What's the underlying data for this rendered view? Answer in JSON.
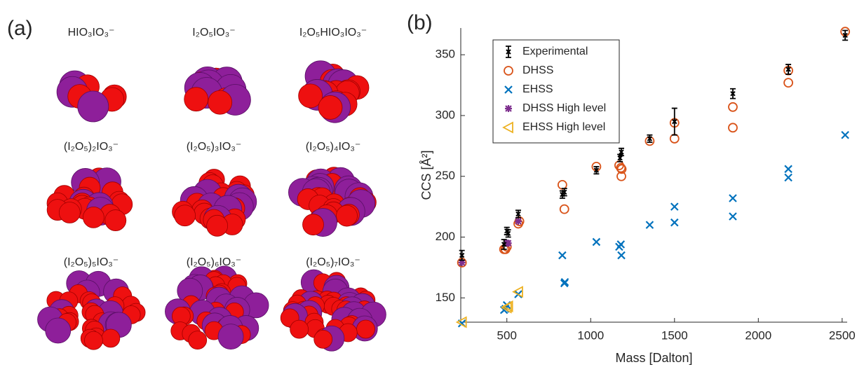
{
  "panel_a": {
    "label": "(a)",
    "molecules": [
      "HIO₃IO₃⁻",
      "I₂O₅IO₃⁻",
      "I₂O₅HIO₃IO₃⁻",
      "(I₂O₅)₂IO₃⁻",
      "(I₂O₅)₃IO₃⁻",
      "(I₂O₅)₄IO₃⁻",
      "(I₂O₅)₅IO₃⁻",
      "(I₂O₅)₆IO₃⁻",
      "(I₂O₅)₇IO₃⁻"
    ]
  },
  "chart_data": {
    "type": "scatter",
    "panel_label": "(b)",
    "x_label": "Mass [Dalton]",
    "y_label": "CCS [Å²]",
    "xlim": [
      225,
      2530
    ],
    "ylim": [
      130,
      372
    ],
    "xticks": [
      500,
      1000,
      1500,
      2000,
      2500
    ],
    "yticks": [
      150,
      200,
      250,
      300,
      350
    ],
    "legend": "upper left",
    "series": [
      {
        "name": "Experimental",
        "color": "#000000",
        "marker": "errorbar",
        "x": [
          232,
          483,
          500,
          508,
          568,
          831,
          843,
          1034,
          1175,
          1183,
          1352,
          1500,
          1848,
          2179,
          2518
        ],
        "values": [
          185,
          194,
          205,
          203,
          219,
          235,
          237,
          255,
          265,
          270,
          281,
          295,
          318,
          338,
          366
        ],
        "errors": [
          4,
          4,
          3,
          3,
          3,
          3,
          3,
          3,
          3,
          3,
          3,
          11,
          4,
          4,
          4
        ]
      },
      {
        "name": "DHSS",
        "color": "#d95319",
        "marker": "circle",
        "x": [
          232,
          483,
          492,
          500,
          568,
          575,
          831,
          843,
          1034,
          1170,
          1180,
          1183,
          1185,
          1352,
          1500,
          1500,
          1848,
          1848,
          2179,
          2179,
          2518
        ],
        "values": [
          179,
          190,
          190,
          192,
          211,
          213,
          243,
          223,
          258,
          259,
          257,
          250,
          256,
          279,
          294,
          281,
          307,
          290,
          337,
          327,
          369
        ]
      },
      {
        "name": "EHSS",
        "color": "#0072bd",
        "marker": "x",
        "x": [
          232,
          483,
          492,
          500,
          568,
          831,
          843,
          846,
          1034,
          1170,
          1180,
          1183,
          1352,
          1500,
          1500,
          1848,
          1848,
          2179,
          2179,
          2518
        ],
        "values": [
          129,
          140,
          141,
          144,
          153,
          185,
          162,
          163,
          196,
          192,
          194,
          185,
          210,
          225,
          212,
          232,
          217,
          256,
          249,
          284
        ]
      },
      {
        "name": "DHSS High level",
        "color": "#7e2f8e",
        "marker": "star",
        "x": [
          232,
          500,
          508,
          568
        ],
        "values": [
          179,
          195,
          195,
          213
        ]
      },
      {
        "name": "EHSS High level",
        "color": "#edb120",
        "marker": "triangle",
        "x": [
          232,
          500,
          508,
          568
        ],
        "values": [
          130,
          142,
          143,
          155
        ]
      }
    ]
  }
}
